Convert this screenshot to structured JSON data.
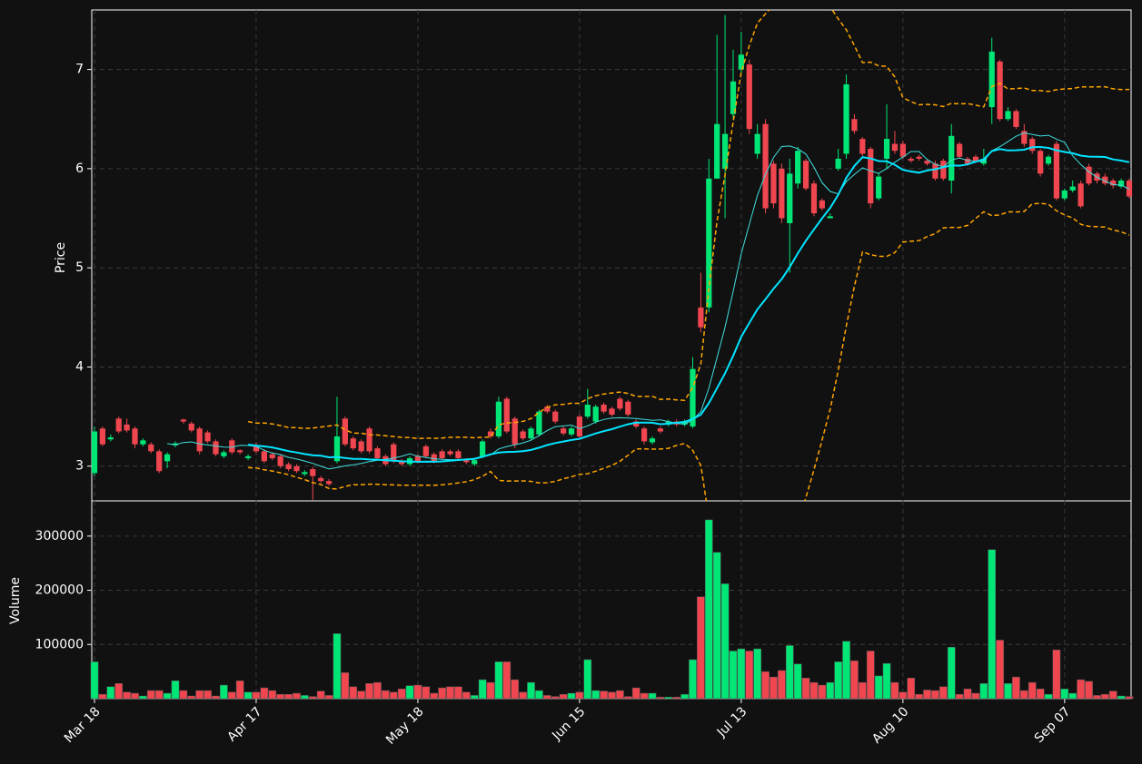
{
  "chart_data": {
    "type": "candlestick",
    "categories": [
      "Mar 18",
      null,
      null,
      null,
      null,
      null,
      null,
      null,
      null,
      null,
      null,
      null,
      null,
      null,
      null,
      null,
      null,
      null,
      null,
      null,
      "Apr 17",
      null,
      null,
      null,
      null,
      null,
      null,
      null,
      null,
      null,
      null,
      null,
      null,
      null,
      null,
      null,
      null,
      null,
      null,
      null,
      "May 18",
      null,
      null,
      null,
      null,
      null,
      null,
      null,
      null,
      null,
      null,
      null,
      null,
      null,
      null,
      null,
      null,
      null,
      null,
      null,
      "Jun 15",
      null,
      null,
      null,
      null,
      null,
      null,
      null,
      null,
      null,
      null,
      null,
      null,
      null,
      null,
      null,
      null,
      null,
      null,
      null,
      "Jul 13",
      null,
      null,
      null,
      null,
      null,
      null,
      null,
      null,
      null,
      null,
      null,
      null,
      null,
      null,
      null,
      null,
      null,
      null,
      null,
      "Aug 10",
      null,
      null,
      null,
      null,
      null,
      null,
      null,
      null,
      null,
      null,
      null,
      null,
      null,
      null,
      null,
      null,
      null,
      null,
      null,
      "Sep 07",
      null,
      null,
      null,
      null,
      null,
      null,
      null,
      null
    ],
    "open": [
      2.93,
      3.38,
      3.27,
      3.48,
      3.42,
      3.38,
      3.22,
      3.22,
      3.15,
      3.05,
      3.21,
      3.47,
      3.43,
      3.38,
      3.34,
      3.25,
      3.1,
      3.26,
      3.16,
      3.08,
      3.2,
      3.15,
      3.12,
      3.1,
      3.02,
      3.0,
      2.92,
      2.97,
      2.88,
      2.85,
      3.05,
      3.48,
      3.28,
      3.25,
      3.38,
      3.18,
      3.1,
      3.22,
      3.05,
      3.02,
      3.1,
      3.2,
      3.12,
      3.15,
      3.15,
      3.15,
      3.06,
      3.02,
      3.1,
      3.35,
      3.3,
      3.68,
      3.48,
      3.35,
      3.28,
      3.32,
      3.6,
      3.55,
      3.38,
      3.32,
      3.5,
      3.5,
      3.45,
      3.62,
      3.58,
      3.68,
      3.65,
      3.45,
      3.38,
      3.24,
      3.38,
      3.42,
      3.45,
      3.42,
      3.4,
      4.6,
      4.6,
      5.9,
      6.0,
      6.55,
      7.0,
      7.05,
      6.15,
      6.45,
      6.05,
      6.0,
      5.45,
      5.85,
      6.08,
      5.85,
      5.68,
      5.5,
      6.0,
      6.15,
      6.5,
      6.3,
      6.2,
      5.7,
      6.1,
      6.25,
      6.25,
      6.1,
      6.12,
      6.08,
      6.05,
      6.08,
      5.88,
      6.25,
      6.1,
      6.12,
      6.05,
      6.62,
      7.08,
      6.5,
      6.58,
      6.38,
      6.3,
      6.18,
      6.05,
      6.25,
      5.7,
      5.78,
      5.85,
      6.02,
      5.95,
      5.92,
      5.88,
      5.82,
      5.88
    ],
    "high": [
      3.4,
      3.4,
      3.32,
      3.5,
      3.48,
      3.4,
      3.28,
      3.24,
      3.17,
      3.14,
      3.25,
      3.48,
      3.45,
      3.4,
      3.36,
      3.27,
      3.16,
      3.28,
      3.17,
      3.12,
      3.24,
      3.17,
      3.14,
      3.12,
      3.04,
      3.02,
      2.96,
      2.99,
      2.9,
      2.87,
      3.7,
      3.5,
      3.3,
      3.27,
      3.4,
      3.2,
      3.12,
      3.24,
      3.07,
      3.1,
      3.12,
      3.22,
      3.14,
      3.17,
      3.17,
      3.17,
      3.08,
      3.08,
      3.27,
      3.38,
      3.7,
      3.7,
      3.5,
      3.37,
      3.4,
      3.57,
      3.62,
      3.57,
      3.4,
      3.4,
      3.52,
      3.78,
      3.62,
      3.64,
      3.6,
      3.7,
      3.67,
      3.47,
      3.4,
      3.3,
      3.4,
      3.47,
      3.47,
      3.47,
      4.1,
      4.95,
      6.1,
      7.35,
      7.55,
      7.2,
      7.38,
      7.1,
      6.45,
      6.5,
      6.08,
      6.05,
      6.1,
      6.22,
      6.1,
      5.88,
      5.7,
      5.55,
      6.2,
      6.95,
      6.55,
      6.32,
      6.22,
      5.95,
      6.65,
      6.38,
      6.28,
      6.12,
      6.14,
      6.1,
      6.08,
      6.1,
      6.45,
      6.27,
      6.12,
      6.14,
      6.2,
      7.32,
      7.1,
      6.62,
      6.6,
      6.45,
      6.32,
      6.2,
      6.14,
      6.28,
      5.8,
      5.88,
      5.88,
      6.05,
      5.97,
      5.95,
      5.9,
      5.9,
      5.9
    ],
    "low": [
      2.9,
      3.2,
      3.25,
      3.33,
      3.34,
      3.18,
      3.2,
      3.13,
      2.93,
      2.98,
      3.19,
      3.43,
      3.34,
      3.12,
      3.23,
      3.1,
      3.08,
      3.12,
      3.12,
      3.06,
      3.13,
      3.03,
      3.06,
      2.98,
      2.95,
      2.93,
      2.9,
      2.66,
      2.83,
      2.8,
      3.03,
      3.2,
      3.16,
      3.13,
      3.13,
      3.06,
      3.0,
      3.03,
      3.0,
      3.0,
      3.03,
      3.08,
      3.03,
      3.06,
      3.1,
      3.06,
      3.02,
      3.0,
      3.08,
      3.28,
      3.28,
      3.33,
      3.18,
      3.26,
      3.26,
      3.3,
      3.53,
      3.43,
      3.31,
      3.3,
      3.28,
      3.48,
      3.43,
      3.53,
      3.5,
      3.56,
      3.5,
      3.38,
      3.22,
      3.22,
      3.33,
      3.4,
      3.4,
      3.4,
      3.38,
      4.35,
      4.55,
      5.9,
      5.5,
      6.5,
      6.95,
      6.35,
      6.1,
      5.55,
      5.6,
      5.45,
      4.95,
      5.8,
      5.78,
      5.52,
      5.58,
      5.5,
      5.98,
      6.1,
      6.35,
      6.12,
      5.6,
      5.68,
      6.0,
      6.15,
      6.1,
      6.06,
      6.08,
      6.03,
      5.88,
      5.88,
      5.75,
      6.1,
      6.03,
      6.06,
      6.03,
      6.45,
      6.48,
      6.48,
      6.4,
      6.22,
      6.15,
      5.92,
      6.03,
      5.68,
      5.68,
      5.76,
      5.6,
      5.83,
      5.85,
      5.83,
      5.8,
      5.8,
      5.7
    ],
    "close": [
      3.35,
      3.22,
      3.29,
      3.35,
      3.36,
      3.22,
      3.26,
      3.15,
      2.95,
      3.12,
      3.23,
      3.45,
      3.36,
      3.15,
      3.25,
      3.12,
      3.14,
      3.14,
      3.14,
      3.1,
      3.15,
      3.05,
      3.08,
      3.0,
      2.97,
      2.95,
      2.94,
      2.9,
      2.85,
      2.82,
      3.3,
      3.22,
      3.18,
      3.15,
      3.15,
      3.08,
      3.02,
      3.05,
      3.02,
      3.08,
      3.05,
      3.1,
      3.05,
      3.08,
      3.12,
      3.08,
      3.04,
      3.06,
      3.25,
      3.3,
      3.65,
      3.35,
      3.22,
      3.28,
      3.38,
      3.55,
      3.55,
      3.45,
      3.33,
      3.38,
      3.3,
      3.62,
      3.6,
      3.55,
      3.52,
      3.58,
      3.52,
      3.4,
      3.25,
      3.28,
      3.35,
      3.45,
      3.42,
      3.45,
      3.98,
      4.4,
      5.9,
      6.45,
      6.35,
      6.88,
      7.15,
      6.4,
      6.35,
      5.6,
      5.65,
      5.5,
      5.95,
      6.18,
      5.8,
      5.55,
      5.6,
      5.52,
      6.1,
      6.85,
      6.38,
      6.15,
      5.65,
      5.92,
      6.3,
      6.18,
      6.12,
      6.08,
      6.1,
      6.05,
      5.9,
      5.9,
      6.33,
      6.12,
      6.05,
      6.08,
      6.1,
      7.18,
      6.5,
      6.58,
      6.42,
      6.25,
      6.18,
      5.95,
      6.12,
      5.7,
      5.78,
      5.82,
      5.62,
      5.85,
      5.88,
      5.85,
      5.83,
      5.88,
      5.72
    ],
    "volume": [
      68000,
      8000,
      22000,
      28000,
      12000,
      10000,
      5000,
      15000,
      15000,
      10000,
      33000,
      15000,
      5000,
      15000,
      15000,
      5000,
      25000,
      12000,
      33000,
      12000,
      12000,
      20000,
      15000,
      8000,
      8000,
      10000,
      6000,
      4000,
      14000,
      6000,
      120000,
      48000,
      22000,
      14000,
      28000,
      30000,
      15000,
      12000,
      18000,
      24000,
      25000,
      22000,
      10000,
      20000,
      22000,
      22000,
      12000,
      6000,
      35000,
      30000,
      68000,
      68000,
      35000,
      12000,
      30000,
      15000,
      6000,
      4000,
      8000,
      10000,
      12000,
      72000,
      15000,
      14000,
      12000,
      15000,
      4000,
      20000,
      10000,
      10000,
      3000,
      3000,
      3000,
      8000,
      72000,
      188000,
      330000,
      270000,
      212000,
      88000,
      92000,
      88000,
      92000,
      50000,
      40000,
      52000,
      98000,
      64000,
      38000,
      30000,
      25000,
      30000,
      68000,
      106000,
      70000,
      30000,
      88000,
      42000,
      65000,
      30000,
      12000,
      38000,
      8000,
      16000,
      15000,
      22000,
      95000,
      8000,
      18000,
      10000,
      28000,
      275000,
      108000,
      28000,
      40000,
      15000,
      30000,
      18000,
      8000,
      90000,
      18000,
      10000,
      35000,
      32000,
      6000,
      8000,
      14000,
      5000,
      4000
    ],
    "up_color": "#00e676",
    "down_color": "#ef4650",
    "moving_averages": [
      {
        "period": 10,
        "color": "#40e0e0"
      },
      {
        "period": 20,
        "color": "#00e5ff"
      }
    ],
    "bollinger": {
      "period": 20,
      "std": 2,
      "color": "#ffa500"
    },
    "ylabel": "Price",
    "ylim": [
      2.65,
      7.6
    ],
    "yticks": [
      3,
      4,
      5,
      6,
      7
    ],
    "y2label": "Volume",
    "y2lim": [
      0,
      365000
    ],
    "y2ticks": [
      100000,
      200000,
      300000
    ],
    "grid": true
  }
}
